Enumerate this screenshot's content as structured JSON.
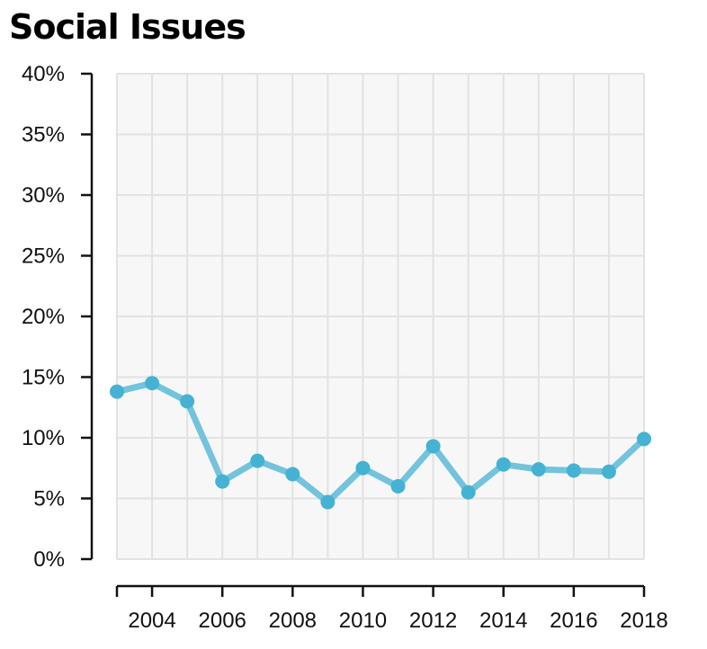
{
  "title": "Social Issues",
  "chart_data": {
    "type": "line",
    "title": "Social Issues",
    "xlabel": "",
    "ylabel": "",
    "x": [
      2003,
      2004,
      2005,
      2006,
      2007,
      2008,
      2009,
      2010,
      2011,
      2012,
      2013,
      2014,
      2015,
      2016,
      2017,
      2018
    ],
    "series": [
      {
        "values": [
          13.8,
          14.5,
          13.0,
          6.4,
          8.1,
          7.0,
          4.7,
          7.5,
          6.0,
          9.3,
          5.5,
          7.8,
          7.4,
          7.3,
          7.2,
          9.9
        ]
      }
    ],
    "xlim": [
      2003,
      2018
    ],
    "ylim": [
      0,
      40
    ],
    "x_ticks": [
      "2004",
      "2006",
      "2008",
      "2010",
      "2012",
      "2014",
      "2016",
      "2018"
    ],
    "y_ticks": [
      "0%",
      "5%",
      "10%",
      "15%",
      "20%",
      "25%",
      "30%",
      "35%",
      "40%"
    ],
    "grid": true,
    "colors": {
      "line": "#73c3dd",
      "point": "#45b2d3",
      "plot_bg": "#f7f7f7",
      "grid": "#e2e2e2"
    }
  }
}
